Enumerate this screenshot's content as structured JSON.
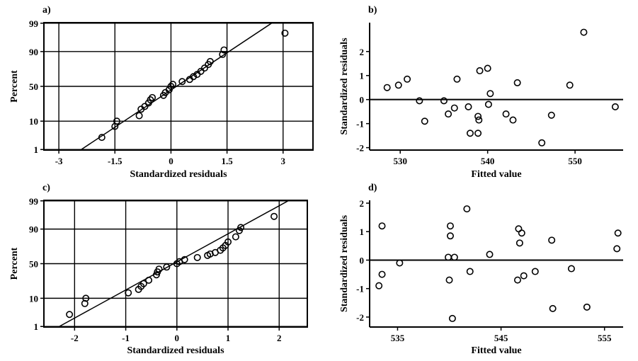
{
  "chart_data": [
    {
      "panel": "a)",
      "type": "scatter",
      "kind": "normal-probability",
      "xlabel": "Standardized residuals",
      "ylabel": "Percent",
      "xlim": [
        -3.4,
        3.8
      ],
      "xticks": [
        -3,
        -1.5,
        0,
        1.5,
        3
      ],
      "xtick_labels": [
        "-3",
        "-1.5",
        "0",
        "1.5",
        "3"
      ],
      "yticks": [
        1,
        10,
        50,
        90,
        99
      ],
      "ytick_labels": [
        "1",
        "10",
        "50",
        "90",
        "99"
      ],
      "grid": true,
      "fit_line": {
        "x": [
          -2.4,
          3.05
        ],
        "y": [
          1,
          99.6
        ]
      },
      "points": [
        {
          "x": -1.85,
          "y": 3
        },
        {
          "x": -1.5,
          "y": 7
        },
        {
          "x": -1.45,
          "y": 10
        },
        {
          "x": -0.85,
          "y": 14
        },
        {
          "x": -0.8,
          "y": 20
        },
        {
          "x": -0.7,
          "y": 23
        },
        {
          "x": -0.6,
          "y": 27
        },
        {
          "x": -0.55,
          "y": 31
        },
        {
          "x": -0.5,
          "y": 34
        },
        {
          "x": -0.2,
          "y": 37
        },
        {
          "x": -0.15,
          "y": 41
        },
        {
          "x": -0.05,
          "y": 45
        },
        {
          "x": 0.0,
          "y": 50
        },
        {
          "x": 0.05,
          "y": 53
        },
        {
          "x": 0.3,
          "y": 57
        },
        {
          "x": 0.5,
          "y": 60
        },
        {
          "x": 0.6,
          "y": 64
        },
        {
          "x": 0.7,
          "y": 67
        },
        {
          "x": 0.8,
          "y": 71
        },
        {
          "x": 0.9,
          "y": 75
        },
        {
          "x": 1.0,
          "y": 79
        },
        {
          "x": 1.05,
          "y": 82
        },
        {
          "x": 1.38,
          "y": 88
        },
        {
          "x": 1.42,
          "y": 91
        },
        {
          "x": 3.05,
          "y": 97.5
        }
      ]
    },
    {
      "panel": "b)",
      "type": "scatter",
      "kind": "residuals-vs-fits",
      "xlabel": "Fitted value",
      "ylabel": "Standardized residuals",
      "xlim": [
        526.5,
        555.5
      ],
      "ylim": [
        -2.1,
        3.2
      ],
      "xticks": [
        530,
        540,
        550
      ],
      "xtick_labels": [
        "530",
        "540",
        "550"
      ],
      "yticks": [
        -2,
        -1,
        0,
        1,
        2
      ],
      "ytick_labels": [
        "-2",
        "-1",
        "0",
        "1",
        "2"
      ],
      "reference_line_y": 0,
      "points": [
        {
          "x": 528.5,
          "y": 0.5
        },
        {
          "x": 529.8,
          "y": 0.6
        },
        {
          "x": 530.8,
          "y": 0.85
        },
        {
          "x": 532.2,
          "y": -0.05
        },
        {
          "x": 532.8,
          "y": -0.9
        },
        {
          "x": 535.0,
          "y": -0.05
        },
        {
          "x": 535.5,
          "y": -0.6
        },
        {
          "x": 536.2,
          "y": -0.35
        },
        {
          "x": 536.5,
          "y": 0.85
        },
        {
          "x": 537.8,
          "y": -0.3
        },
        {
          "x": 538.0,
          "y": -1.4
        },
        {
          "x": 538.9,
          "y": -1.4
        },
        {
          "x": 538.9,
          "y": -0.7
        },
        {
          "x": 539.0,
          "y": -0.85
        },
        {
          "x": 539.1,
          "y": 1.2
        },
        {
          "x": 540.0,
          "y": 1.3
        },
        {
          "x": 540.1,
          "y": -0.2
        },
        {
          "x": 540.3,
          "y": 0.25
        },
        {
          "x": 542.1,
          "y": -0.6
        },
        {
          "x": 542.9,
          "y": -0.85
        },
        {
          "x": 543.4,
          "y": 0.7
        },
        {
          "x": 546.2,
          "y": -1.8
        },
        {
          "x": 547.3,
          "y": -0.65
        },
        {
          "x": 549.4,
          "y": 0.6
        },
        {
          "x": 551.0,
          "y": 2.8
        },
        {
          "x": 554.6,
          "y": -0.3
        }
      ]
    },
    {
      "panel": "c)",
      "type": "scatter",
      "kind": "normal-probability",
      "xlabel": "Standardized residuals",
      "ylabel": "Percent",
      "xlim": [
        -2.6,
        2.55
      ],
      "xticks": [
        -2,
        -1,
        0,
        1,
        2
      ],
      "xtick_labels": [
        "-2",
        "-1",
        "0",
        "1",
        "2"
      ],
      "yticks": [
        1,
        10,
        50,
        90,
        99
      ],
      "ytick_labels": [
        "1",
        "10",
        "50",
        "90",
        "99"
      ],
      "grid": true,
      "fit_line": {
        "x": [
          -2.3,
          2.3
        ],
        "y": [
          1,
          99.3
        ]
      },
      "points": [
        {
          "x": -2.1,
          "y": 3
        },
        {
          "x": -1.8,
          "y": 7
        },
        {
          "x": -1.78,
          "y": 10
        },
        {
          "x": -0.95,
          "y": 14
        },
        {
          "x": -0.75,
          "y": 17
        },
        {
          "x": -0.7,
          "y": 20
        },
        {
          "x": -0.65,
          "y": 23
        },
        {
          "x": -0.55,
          "y": 27
        },
        {
          "x": -0.4,
          "y": 34
        },
        {
          "x": -0.38,
          "y": 38
        },
        {
          "x": -0.35,
          "y": 42
        },
        {
          "x": -0.2,
          "y": 45
        },
        {
          "x": 0.0,
          "y": 50
        },
        {
          "x": 0.05,
          "y": 53
        },
        {
          "x": 0.15,
          "y": 56
        },
        {
          "x": 0.4,
          "y": 59
        },
        {
          "x": 0.6,
          "y": 62
        },
        {
          "x": 0.65,
          "y": 64
        },
        {
          "x": 0.75,
          "y": 66
        },
        {
          "x": 0.85,
          "y": 69
        },
        {
          "x": 0.9,
          "y": 72
        },
        {
          "x": 0.95,
          "y": 75
        },
        {
          "x": 1.0,
          "y": 79
        },
        {
          "x": 1.15,
          "y": 84
        },
        {
          "x": 1.22,
          "y": 89
        },
        {
          "x": 1.25,
          "y": 91
        },
        {
          "x": 1.9,
          "y": 96
        }
      ]
    },
    {
      "panel": "d)",
      "type": "scatter",
      "kind": "residuals-vs-fits",
      "xlabel": "Fitted value",
      "ylabel": "Standardized residuals",
      "xlim": [
        532.3,
        556.8
      ],
      "ylim": [
        -2.35,
        2.1
      ],
      "xticks": [
        535,
        545,
        555
      ],
      "xtick_labels": [
        "535",
        "545",
        "555"
      ],
      "yticks": [
        -2,
        -1,
        0,
        1,
        2
      ],
      "ytick_labels": [
        "-2",
        "-1",
        "0",
        "1",
        "2"
      ],
      "reference_line_y": 0,
      "points": [
        {
          "x": 533.2,
          "y": -0.9
        },
        {
          "x": 533.5,
          "y": -0.5
        },
        {
          "x": 533.5,
          "y": 1.2
        },
        {
          "x": 535.2,
          "y": -0.1
        },
        {
          "x": 539.9,
          "y": 0.1
        },
        {
          "x": 540.0,
          "y": -0.7
        },
        {
          "x": 540.1,
          "y": 1.2
        },
        {
          "x": 540.1,
          "y": 0.85
        },
        {
          "x": 540.3,
          "y": -2.05
        },
        {
          "x": 540.5,
          "y": 0.1
        },
        {
          "x": 541.7,
          "y": 1.8
        },
        {
          "x": 542.0,
          "y": -0.4
        },
        {
          "x": 543.9,
          "y": 0.2
        },
        {
          "x": 546.6,
          "y": -0.7
        },
        {
          "x": 546.7,
          "y": 1.1
        },
        {
          "x": 546.8,
          "y": 0.6
        },
        {
          "x": 547.0,
          "y": 0.95
        },
        {
          "x": 547.2,
          "y": -0.55
        },
        {
          "x": 548.3,
          "y": -0.4
        },
        {
          "x": 549.9,
          "y": 0.7
        },
        {
          "x": 550.0,
          "y": -1.7
        },
        {
          "x": 551.8,
          "y": -0.3
        },
        {
          "x": 553.3,
          "y": -1.65
        },
        {
          "x": 556.2,
          "y": 0.4
        },
        {
          "x": 556.3,
          "y": 0.95
        }
      ]
    }
  ]
}
